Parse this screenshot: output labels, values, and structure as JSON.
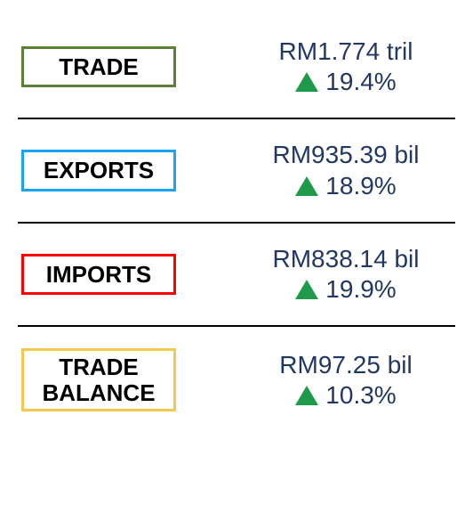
{
  "styling": {
    "label_fontsize": 26,
    "value_fontsize": 28,
    "change_fontsize": 28,
    "value_color": "#213864",
    "change_color": "#213864",
    "label_text_color": "#000000",
    "arrow_up_color": "#1f9a4a",
    "divider_color": "#000000",
    "background_color": "#ffffff"
  },
  "rows": [
    {
      "label": "TRADE",
      "border_color": "#5a8135",
      "value": "RM1.774 tril",
      "change": "19.4%",
      "direction": "up"
    },
    {
      "label": "EXPORTS",
      "border_color": "#1aa3ef",
      "value": "RM935.39 bil",
      "change": "18.9%",
      "direction": "up"
    },
    {
      "label": "IMPORTS",
      "border_color": "#ff0000",
      "value": "RM838.14 bil",
      "change": "19.9%",
      "direction": "up"
    },
    {
      "label": "TRADE\nBALANCE",
      "border_color": "#f4c94d",
      "value": "RM97.25 bil",
      "change": "10.3%",
      "direction": "up"
    }
  ]
}
